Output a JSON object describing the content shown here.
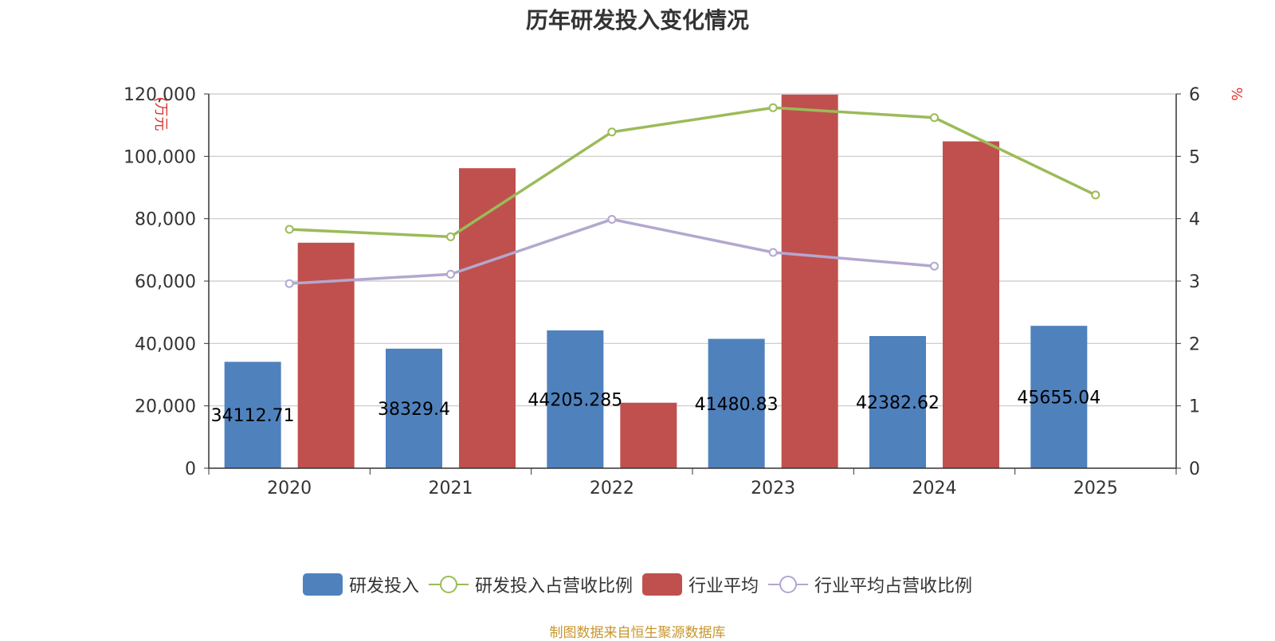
{
  "chart_data": {
    "type": "bar",
    "title": "历年研发投入变化情况",
    "categories": [
      "2020",
      "2021",
      "2022",
      "2023",
      "2024",
      "2025"
    ],
    "y_left": {
      "label": "(万元",
      "ylim": [
        0,
        120000
      ],
      "ticks": [
        0,
        20000,
        40000,
        60000,
        80000,
        100000,
        120000
      ],
      "tick_labels": [
        "0",
        "20,000",
        "40,000",
        "60,000",
        "80,000",
        "100,000",
        "120,000"
      ]
    },
    "y_right": {
      "label": "%",
      "ylim": [
        0,
        6
      ],
      "ticks": [
        0,
        1,
        2,
        3,
        4,
        5,
        6
      ],
      "tick_labels": [
        "0",
        "1",
        "2",
        "3",
        "4",
        "5",
        "6"
      ]
    },
    "grid": true,
    "legend_position": "bottom",
    "series": [
      {
        "name": "研发投入",
        "kind": "bar",
        "axis": "left",
        "color": "#4f81bd",
        "values": [
          34112.71,
          38329.4,
          44205.285,
          41480.83,
          42382.62,
          45655.04
        ],
        "labels": [
          "34112.71",
          "38329.4",
          "44205.285",
          "41480.83",
          "42382.62",
          "45655.04"
        ]
      },
      {
        "name": "研发投入占营收比例",
        "kind": "line",
        "axis": "right",
        "color": "#9bbb59",
        "values": [
          3.83,
          3.71,
          5.39,
          5.78,
          5.62,
          4.38
        ]
      },
      {
        "name": "行业平均",
        "kind": "bar",
        "axis": "left",
        "color": "#c0504d",
        "values": [
          72300,
          96200,
          21000,
          119800,
          104800,
          null
        ]
      },
      {
        "name": "行业平均占营收比例",
        "kind": "line",
        "axis": "right",
        "color": "#b3a7cf",
        "values": [
          2.96,
          3.11,
          3.99,
          3.46,
          3.24,
          null
        ]
      }
    ]
  },
  "source_text": "制图数据来自恒生聚源数据库"
}
